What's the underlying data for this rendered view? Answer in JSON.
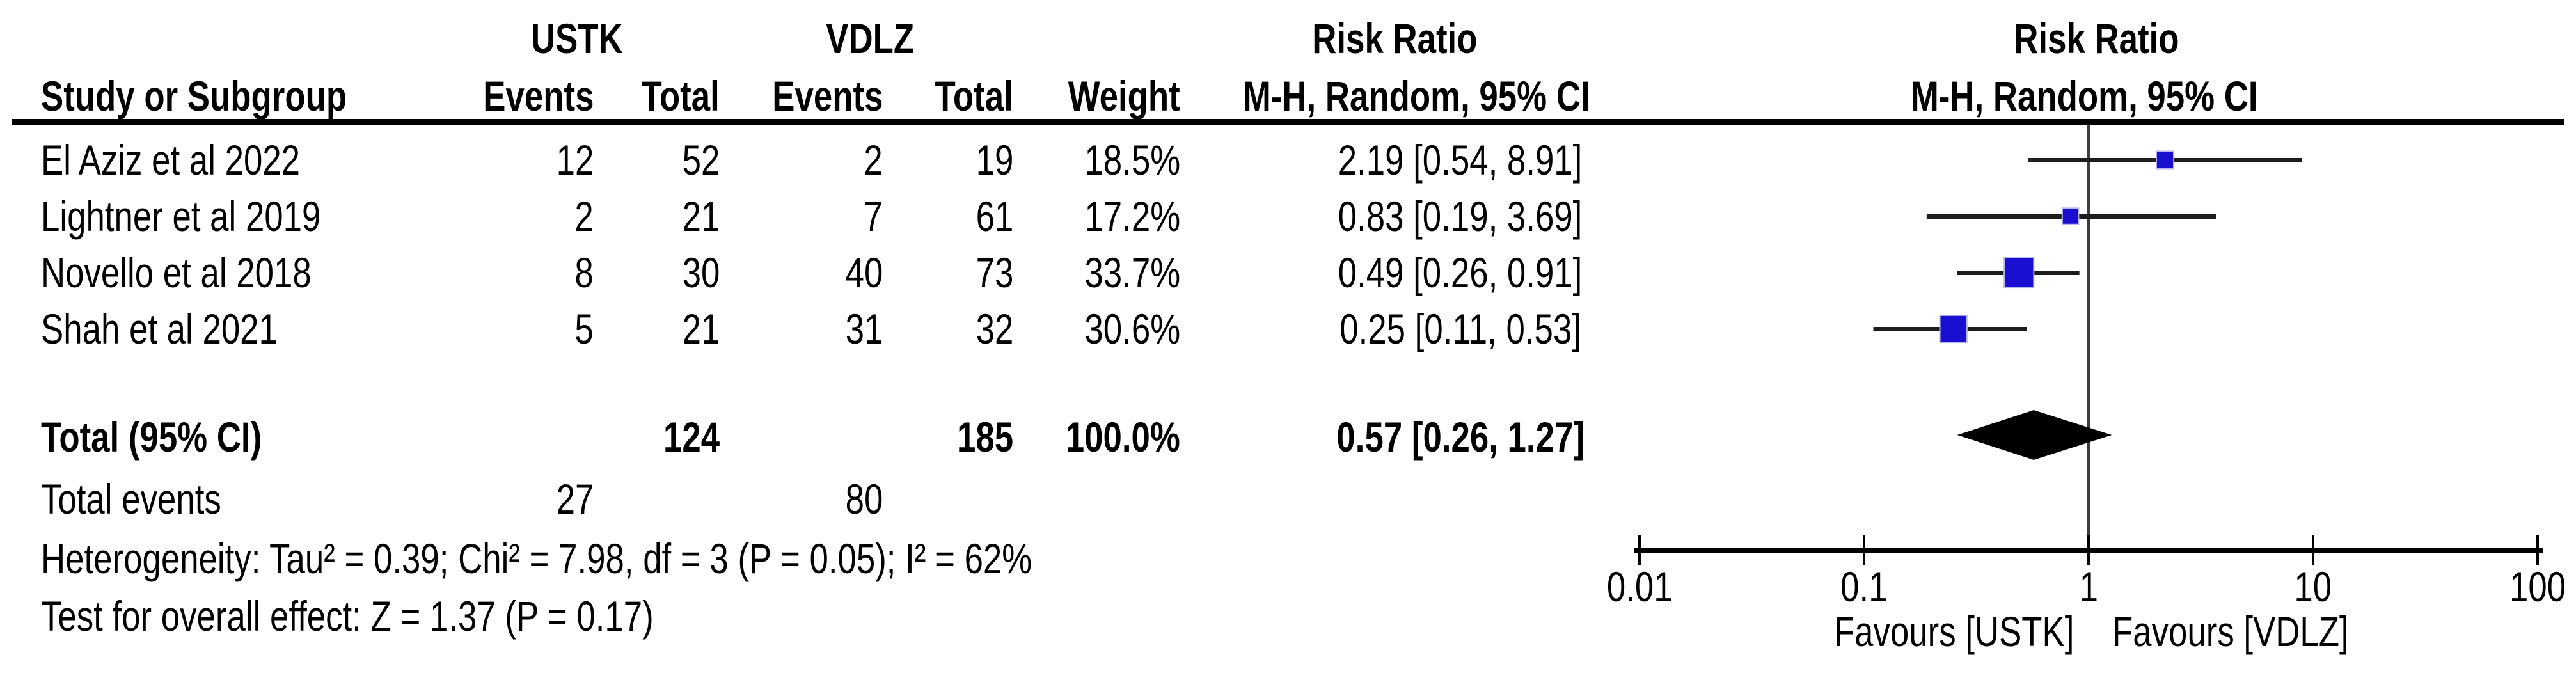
{
  "chart_data": {
    "type": "forest-plot",
    "effect_measure": "Risk Ratio",
    "method_label": "M-H, Random, 95% CI",
    "header": {
      "group1": "USTK",
      "group2": "VDLZ",
      "risk_ratio_text_col": "Risk Ratio",
      "risk_ratio_plot_col": "Risk Ratio",
      "study_col": "Study or Subgroup",
      "events1_col": "Events",
      "total1_col": "Total",
      "events2_col": "Events",
      "total2_col": "Total",
      "weight_col": "Weight",
      "mh_text_col": "M-H, Random, 95% CI",
      "mh_plot_col": "M-H, Random, 95% CI"
    },
    "studies": [
      {
        "label": "El Aziz et al 2022",
        "events1": 12,
        "total1": 52,
        "events2": 2,
        "total2": 19,
        "weight": "18.5%",
        "weight_pct": 18.5,
        "rr": 2.19,
        "ci_low": 0.54,
        "ci_high": 8.91,
        "rr_text": "2.19 [0.54, 8.91]"
      },
      {
        "label": "Lightner et al 2019",
        "events1": 2,
        "total1": 21,
        "events2": 7,
        "total2": 61,
        "weight": "17.2%",
        "weight_pct": 17.2,
        "rr": 0.83,
        "ci_low": 0.19,
        "ci_high": 3.69,
        "rr_text": "0.83 [0.19, 3.69]"
      },
      {
        "label": "Novello et al 2018",
        "events1": 8,
        "total1": 30,
        "events2": 40,
        "total2": 73,
        "weight": "33.7%",
        "weight_pct": 33.7,
        "rr": 0.49,
        "ci_low": 0.26,
        "ci_high": 0.91,
        "rr_text": "0.49 [0.26, 0.91]"
      },
      {
        "label": "Shah et al 2021",
        "events1": 5,
        "total1": 21,
        "events2": 31,
        "total2": 32,
        "weight": "30.6%",
        "weight_pct": 30.6,
        "rr": 0.25,
        "ci_low": 0.11,
        "ci_high": 0.53,
        "rr_text": "0.25 [0.11, 0.53]"
      }
    ],
    "total": {
      "label": "Total (95% CI)",
      "total1": 124,
      "total2": 185,
      "weight": "100.0%",
      "rr": 0.57,
      "ci_low": 0.26,
      "ci_high": 1.27,
      "rr_text": "0.57 [0.26, 1.27]"
    },
    "total_events": {
      "label": "Total events",
      "events1": 27,
      "events2": 80
    },
    "heterogeneity": "Heterogeneity: Tau² = 0.39; Chi² = 7.98, df = 3 (P = 0.05); I² = 62%",
    "overall_effect": "Test for overall effect: Z = 1.37 (P = 0.17)",
    "axis": {
      "min": 0.01,
      "max": 100,
      "scale": "log10",
      "ticks": [
        0.01,
        0.1,
        1,
        10,
        100
      ],
      "tick_labels": [
        "0.01",
        "0.1",
        "1",
        "10",
        "100"
      ],
      "null_value": 1
    },
    "favours_left": "Favours [USTK]",
    "favours_right": "Favours [VDLZ]",
    "colors": {
      "marker": "#1a0ed0",
      "marker_edge": "#b8b8ee",
      "ci_line": "#1c1c1c",
      "null_line": "#3d3d3d",
      "axis": "#000000",
      "diamond": "#000000",
      "text": "#000000"
    }
  }
}
